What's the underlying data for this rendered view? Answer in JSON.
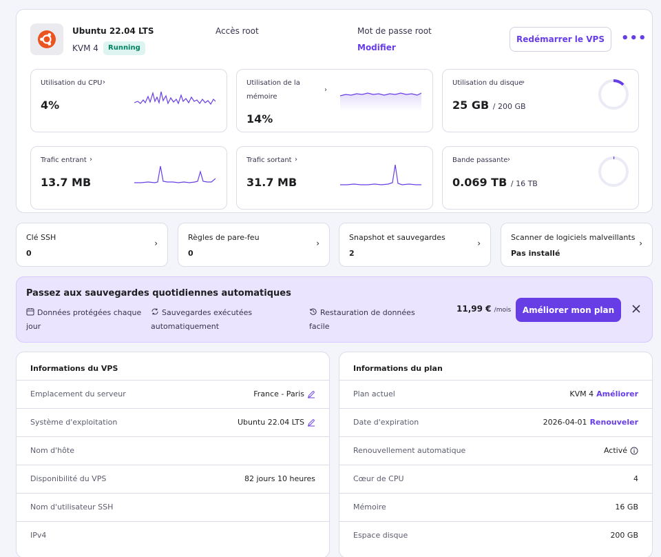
{
  "server": {
    "os_name": "Ubuntu 22.04 LTS",
    "plan": "KVM 4",
    "status": "Running",
    "root_access_label": "Accès root",
    "root_password_label": "Mot de passe root",
    "root_password_action": "Modifier",
    "restart_button": "Redémarrer le VPS",
    "more_icon": "more-horizontal-icon"
  },
  "metrics": {
    "cpu": {
      "label": "Utilisation du CPU",
      "value": "4%"
    },
    "memory": {
      "label": "Utilisation de la mémoire",
      "value": "14%"
    },
    "disk": {
      "label": "Utilisation du disque",
      "value": "25 GB",
      "total": "/ 200 GB",
      "used_fraction": 0.125
    },
    "incoming": {
      "label": "Trafic entrant",
      "value": "13.7 MB"
    },
    "outgoing": {
      "label": "Trafic sortant",
      "value": "31.7 MB"
    },
    "bandwidth": {
      "label": "Bande passante",
      "value": "0.069 TB",
      "total": "/ 16 TB",
      "used_fraction": 0.004
    }
  },
  "shortcuts": [
    {
      "label": "Clé SSH",
      "value": "0"
    },
    {
      "label": "Règles de pare-feu",
      "value": "0"
    },
    {
      "label": "Snapshot et sauvegardes",
      "value": "2"
    },
    {
      "label": "Scanner de logiciels malveillants",
      "value": "Pas installé"
    }
  ],
  "promo": {
    "title": "Passez aux sauvegardes quotidiennes automatiques",
    "features": [
      {
        "line1": "Données protégées chaque",
        "line2": "jour",
        "icon": "calendar-icon"
      },
      {
        "line1": "Sauvegardes exécutées",
        "line2": "automatiquement",
        "icon": "sync-icon"
      },
      {
        "line1": "Restauration de données",
        "line2": "facile",
        "icon": "history-icon"
      }
    ],
    "price": "11,99 €",
    "period": "/mois",
    "button": "Améliorer mon plan"
  },
  "vps_info": {
    "title": "Informations du VPS",
    "rows": [
      {
        "key": "Emplacement du serveur",
        "value": "France - Paris"
      },
      {
        "key": "Système d'exploitation",
        "value": "Ubuntu 22.04 LTS"
      },
      {
        "key": "Nom d'hôte",
        "value": ""
      },
      {
        "key": "Disponibilité du VPS",
        "value": "82 jours 10 heures"
      },
      {
        "key": "Nom d'utilisateur SSH",
        "value": ""
      },
      {
        "key": "IPv4",
        "value": ""
      }
    ]
  },
  "plan_info": {
    "title": "Informations du plan",
    "rows": [
      {
        "key": "Plan actuel",
        "value": "KVM 4",
        "link": "Améliorer"
      },
      {
        "key": "Date d'expiration",
        "value": "2026-04-01",
        "link": "Renouveler"
      },
      {
        "key": "Renouvellement automatique",
        "value": "Activé"
      },
      {
        "key": "Cœur de CPU",
        "value": "4"
      },
      {
        "key": "Mémoire",
        "value": "16 GB"
      },
      {
        "key": "Espace disque",
        "value": "200 GB"
      }
    ]
  },
  "colors": {
    "accent": "#673de6",
    "running_bg": "#def4f0",
    "running_text": "#008361",
    "promo_bg": "#ebe4ff"
  }
}
